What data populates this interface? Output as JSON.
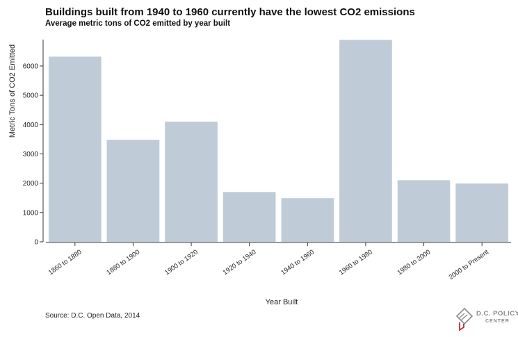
{
  "header": {
    "title": "Buildings built from 1940 to 1960 currently have the lowest CO2 emissions",
    "subtitle": "Average metric tons of CO2 emitted by year built"
  },
  "footer": {
    "source": "Source: D.C. Open Data, 2014"
  },
  "logo": {
    "line1": "D.C. POLICY",
    "line2": "CENTER",
    "icon": "dc-map-icon",
    "accent_color": "#c0272d"
  },
  "chart_data": {
    "type": "bar",
    "title": "Buildings built from 1940 to 1960 currently have the lowest CO2 emissions",
    "subtitle": "Average metric tons of CO2 emitted by year built",
    "xlabel": "Year Built",
    "ylabel": "Metric Tons of CO2 Emitted",
    "categories": [
      "1860 to 1880",
      "1880 to 1900",
      "1900 to 1920",
      "1920 to 1940",
      "1940 to 1960",
      "1960 to 1980",
      "1980 to 2000",
      "2000 to Present"
    ],
    "values": [
      6320,
      3480,
      4100,
      1700,
      1490,
      6890,
      2100,
      1990
    ],
    "yticks": [
      0,
      1000,
      2000,
      3000,
      4000,
      5000,
      6000
    ],
    "ylim": [
      0,
      6900
    ],
    "bar_color": "#bfccd8",
    "grid": false,
    "legend": "none"
  }
}
